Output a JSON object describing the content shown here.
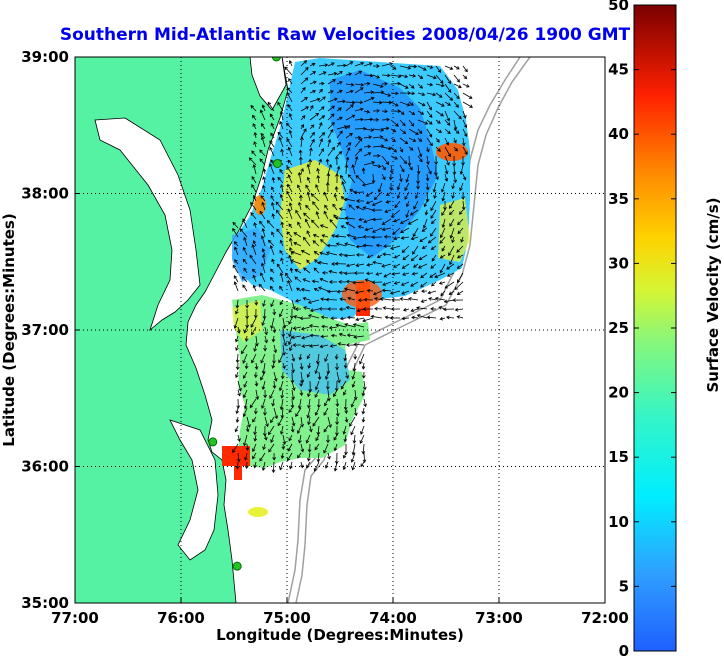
{
  "chart_data": {
    "type": "heatmap",
    "title": "Southern Mid-Atlantic Raw Velocities 2008/04/26 1900 GMT",
    "xlabel": "Longitude (Degrees:Minutes)",
    "ylabel": "Latitude (Degrees:Minutes)",
    "xlim": [
      -77,
      -72
    ],
    "ylim": [
      35,
      39
    ],
    "x_ticks": [
      {
        "value": -77,
        "label": "77:00"
      },
      {
        "value": -76,
        "label": "76:00"
      },
      {
        "value": -75,
        "label": "75:00"
      },
      {
        "value": -74,
        "label": "74:00"
      },
      {
        "value": -73,
        "label": "73:00"
      },
      {
        "value": -72,
        "label": "72:00"
      }
    ],
    "y_ticks": [
      {
        "value": 35,
        "label": "35:00"
      },
      {
        "value": 36,
        "label": "36:00"
      },
      {
        "value": 37,
        "label": "37:00"
      },
      {
        "value": 38,
        "label": "38:00"
      },
      {
        "value": 39,
        "label": "39:00"
      }
    ],
    "grid": true,
    "colorbar": {
      "label": "Surface Velocity (cm/s)",
      "range": [
        0,
        50
      ],
      "ticks": [
        {
          "value": 0,
          "label": "0"
        },
        {
          "value": 5,
          "label": "5"
        },
        {
          "value": 10,
          "label": "10"
        },
        {
          "value": 15,
          "label": "15"
        },
        {
          "value": 20,
          "label": "20"
        },
        {
          "value": 25,
          "label": "25"
        },
        {
          "value": 30,
          "label": "30"
        },
        {
          "value": 35,
          "label": "35"
        },
        {
          "value": 40,
          "label": "40"
        },
        {
          "value": 45,
          "label": "45"
        },
        {
          "value": 50,
          "label": "50"
        }
      ],
      "colormap": "jet"
    },
    "colors": {
      "land": "#55f2a3",
      "water": "#ffffff",
      "bathymetry": "#a0a0a0",
      "arrows": "#000000",
      "stations": "#22c322",
      "title": "#0000ee"
    },
    "features": {
      "stations": [
        {
          "lon": -75.1,
          "lat": 39.0
        },
        {
          "lon": -75.09,
          "lat": 38.22
        },
        {
          "lon": -75.7,
          "lat": 36.18
        },
        {
          "lon": -75.47,
          "lat": 35.27
        }
      ],
      "hotspots_cm_s": [
        {
          "lon": -74.3,
          "lat": 37.15,
          "value": 40
        },
        {
          "lon": -73.35,
          "lat": 38.27,
          "value": 37
        },
        {
          "lon": -75.5,
          "lat": 36.05,
          "value": 40
        },
        {
          "lon": -75.25,
          "lat": 37.9,
          "value": 33
        }
      ]
    }
  }
}
